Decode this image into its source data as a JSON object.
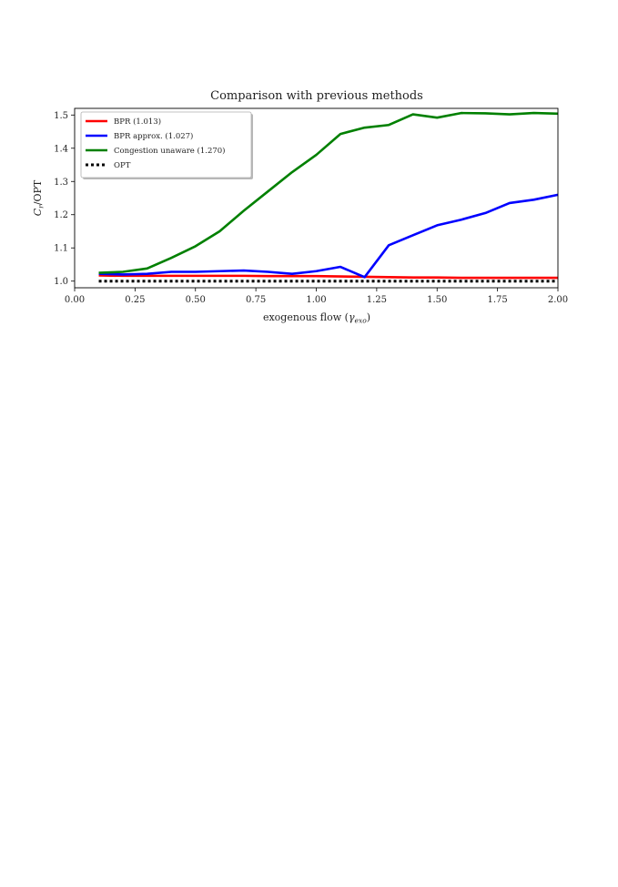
{
  "chart_data": {
    "type": "line",
    "title": "Comparison with previous methods",
    "xlabel_main": "exogenous flow (",
    "xlabel_symbol": "γ",
    "xlabel_sub": "exo",
    "xlabel_close": ")",
    "ylabel_symbol": "C",
    "ylabel_sub": "r",
    "ylabel_rest": "/OPT",
    "xlim": [
      0.0,
      2.0
    ],
    "ylim": [
      0.98,
      1.52
    ],
    "xticks": [
      0.0,
      0.25,
      0.5,
      0.75,
      1.0,
      1.25,
      1.5,
      1.75,
      2.0
    ],
    "xtick_labels": [
      "0.00",
      "0.25",
      "0.50",
      "0.75",
      "1.00",
      "1.25",
      "1.50",
      "1.75",
      "2.00"
    ],
    "yticks": [
      1.0,
      1.1,
      1.2,
      1.3,
      1.4,
      1.5
    ],
    "ytick_labels": [
      "1.0",
      "1.1",
      "1.2",
      "1.3",
      "1.4",
      "1.5"
    ],
    "grid": false,
    "legend_position": "top-left",
    "x": [
      0.1,
      0.2,
      0.3,
      0.4,
      0.5,
      0.6,
      0.7,
      0.8,
      0.9,
      1.0,
      1.1,
      1.2,
      1.3,
      1.4,
      1.5,
      1.6,
      1.7,
      1.8,
      1.9,
      2.0
    ],
    "series": [
      {
        "name": "BPR (1.013)",
        "color": "#ff0000",
        "style": "solid",
        "values": [
          1.017,
          1.016,
          1.016,
          1.016,
          1.016,
          1.016,
          1.016,
          1.015,
          1.015,
          1.015,
          1.014,
          1.013,
          1.012,
          1.011,
          1.011,
          1.01,
          1.01,
          1.01,
          1.01,
          1.01
        ]
      },
      {
        "name": "BPR approx. (1.027)",
        "color": "#0000ff",
        "style": "solid",
        "values": [
          1.022,
          1.02,
          1.022,
          1.028,
          1.028,
          1.03,
          1.032,
          1.028,
          1.022,
          1.03,
          1.043,
          1.012,
          1.108,
          1.138,
          1.168,
          1.185,
          1.205,
          1.235,
          1.245,
          1.26
        ]
      },
      {
        "name": "Congestion unaware (1.270)",
        "color": "#008000",
        "style": "solid",
        "values": [
          1.025,
          1.028,
          1.038,
          1.07,
          1.105,
          1.15,
          1.212,
          1.27,
          1.328,
          1.38,
          1.443,
          1.462,
          1.47,
          1.502,
          1.492,
          1.506,
          1.505,
          1.502,
          1.506,
          1.504
        ]
      },
      {
        "name": "OPT",
        "color": "#000000",
        "style": "dotted",
        "values": [
          1.0,
          1.0,
          1.0,
          1.0,
          1.0,
          1.0,
          1.0,
          1.0,
          1.0,
          1.0,
          1.0,
          1.0,
          1.0,
          1.0,
          1.0,
          1.0,
          1.0,
          1.0,
          1.0,
          1.0
        ]
      }
    ]
  }
}
